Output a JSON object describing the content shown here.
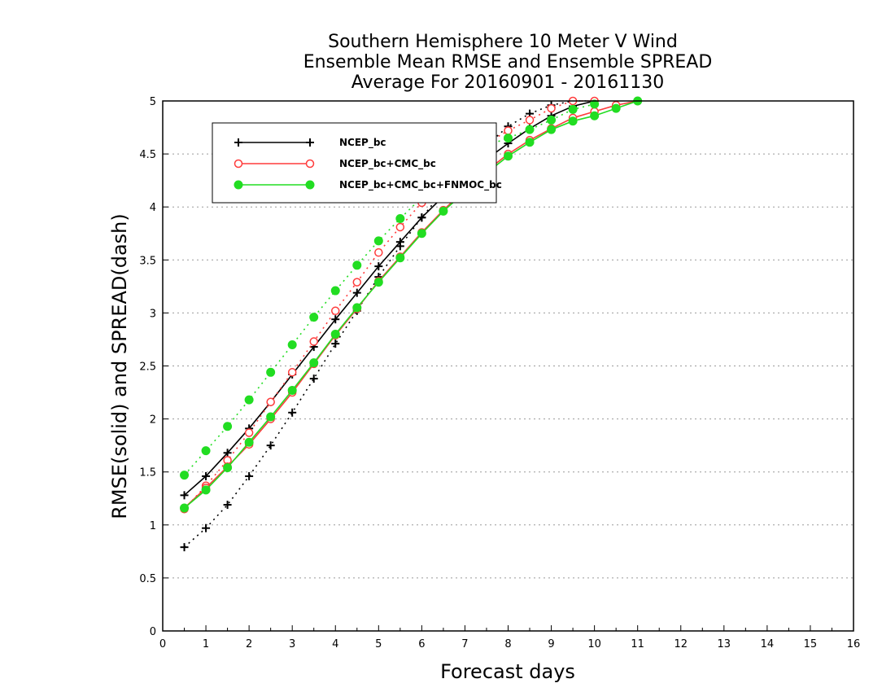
{
  "chart_data": {
    "type": "line",
    "title_lines": [
      "Southern Hemisphere 10 Meter V Wind",
      "Ensemble Mean RMSE and Ensemble SPREAD",
      "Average For 20160901 - 20161130"
    ],
    "xlabel": "Forecast days",
    "ylabel": "RMSE(solid) and SPREAD(dash)",
    "xlim": [
      0,
      16
    ],
    "ylim": [
      0,
      5
    ],
    "xticks": [
      "0",
      "1",
      "2",
      "3",
      "4",
      "5",
      "6",
      "7",
      "8",
      "9",
      "10",
      "11",
      "12",
      "13",
      "14",
      "15",
      "16"
    ],
    "yticks": [
      "0",
      "0.5",
      "1",
      "1.5",
      "2",
      "2.5",
      "3",
      "3.5",
      "4",
      "4.5",
      "5"
    ],
    "grid": "horizontal-dotted",
    "legend_position": "top-left",
    "series": [
      {
        "name": "NCEP_bc",
        "color": "#000000",
        "marker": "plus",
        "rmse": {
          "x": [
            0.5,
            1,
            1.5,
            2,
            2.5,
            3,
            3.5,
            4,
            4.5,
            5,
            5.5,
            6,
            6.5,
            7,
            7.5,
            8,
            8.5,
            9,
            9.5,
            10
          ],
          "y": [
            1.28,
            1.46,
            1.68,
            1.91,
            2.16,
            2.42,
            2.68,
            2.94,
            3.19,
            3.44,
            3.67,
            3.9,
            4.1,
            4.28,
            4.45,
            4.6,
            4.74,
            4.86,
            4.95,
            5.0
          ]
        },
        "spread": {
          "x": [
            0.5,
            1,
            1.5,
            2,
            2.5,
            3,
            3.5,
            4,
            4.5,
            5,
            5.5,
            6,
            6.5,
            7,
            7.5,
            8,
            8.5,
            9,
            9.5,
            10
          ],
          "y": [
            0.79,
            0.97,
            1.19,
            1.46,
            1.75,
            2.06,
            2.38,
            2.71,
            3.02,
            3.34,
            3.63,
            3.9,
            4.15,
            4.38,
            4.58,
            4.76,
            4.88,
            4.96,
            5.0,
            5.0
          ]
        }
      },
      {
        "name": "NCEP_bc+CMC_bc",
        "color": "#ff3b3b",
        "marker": "open-circle",
        "rmse": {
          "x": [
            0.5,
            1,
            1.5,
            2,
            2.5,
            3,
            3.5,
            4,
            4.5,
            5,
            5.5,
            6,
            6.5,
            7,
            7.5,
            8,
            8.5,
            9,
            9.5,
            10,
            10.5,
            11
          ],
          "y": [
            1.16,
            1.35,
            1.55,
            1.76,
            2.0,
            2.25,
            2.52,
            2.79,
            3.04,
            3.3,
            3.53,
            3.76,
            3.97,
            4.16,
            4.34,
            4.5,
            4.63,
            4.74,
            4.84,
            4.9,
            4.96,
            5.0
          ]
        },
        "spread": {
          "x": [
            0.5,
            1,
            1.5,
            2,
            2.5,
            3,
            3.5,
            4,
            4.5,
            5,
            5.5,
            6,
            6.5,
            7,
            7.5,
            8,
            8.5,
            9,
            9.5,
            10
          ],
          "y": [
            1.15,
            1.37,
            1.61,
            1.87,
            2.16,
            2.44,
            2.73,
            3.02,
            3.29,
            3.57,
            3.81,
            4.04,
            4.25,
            4.45,
            4.6,
            4.72,
            4.82,
            4.93,
            5.0,
            5.0
          ]
        }
      },
      {
        "name": "NCEP_bc+CMC_bc+FNMOC_bc",
        "color": "#22dd22",
        "marker": "filled-circle",
        "rmse": {
          "x": [
            0.5,
            1,
            1.5,
            2,
            2.5,
            3,
            3.5,
            4,
            4.5,
            5,
            5.5,
            6,
            6.5,
            7,
            7.5,
            8,
            8.5,
            9,
            9.5,
            10,
            10.5,
            11
          ],
          "y": [
            1.16,
            1.33,
            1.54,
            1.78,
            2.02,
            2.27,
            2.53,
            2.8,
            3.05,
            3.29,
            3.52,
            3.75,
            3.96,
            4.14,
            4.32,
            4.48,
            4.61,
            4.73,
            4.81,
            4.86,
            4.93,
            5.0
          ]
        },
        "spread": {
          "x": [
            0.5,
            1,
            1.5,
            2,
            2.5,
            3,
            3.5,
            4,
            4.5,
            5,
            5.5,
            6,
            6.5,
            7,
            7.5,
            8,
            8.5,
            9,
            9.5,
            10
          ],
          "y": [
            1.47,
            1.7,
            1.93,
            2.18,
            2.44,
            2.7,
            2.96,
            3.21,
            3.45,
            3.68,
            3.89,
            4.09,
            4.28,
            4.45,
            4.58,
            4.65,
            4.73,
            4.82,
            4.92,
            4.97
          ]
        }
      }
    ]
  }
}
